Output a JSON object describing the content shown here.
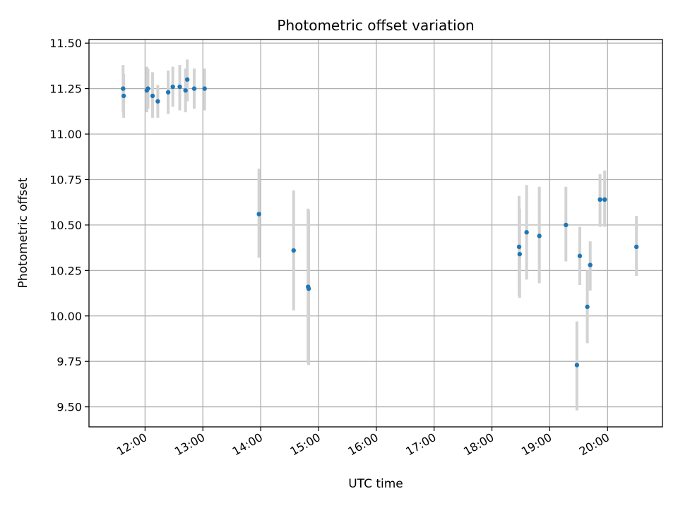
{
  "chart_data": {
    "type": "scatter",
    "title": "Photometric offset variation",
    "xlabel": "UTC time",
    "ylabel": "Photometric offset",
    "xlim_hours": [
      11.03,
      20.95
    ],
    "ylim": [
      9.39,
      11.52
    ],
    "x_ticks": [
      {
        "hour": 12,
        "label": "12:00"
      },
      {
        "hour": 13,
        "label": "13:00"
      },
      {
        "hour": 14,
        "label": "14:00"
      },
      {
        "hour": 15,
        "label": "15:00"
      },
      {
        "hour": 16,
        "label": "16:00"
      },
      {
        "hour": 17,
        "label": "17:00"
      },
      {
        "hour": 18,
        "label": "18:00"
      },
      {
        "hour": 19,
        "label": "19:00"
      },
      {
        "hour": 20,
        "label": "20:00"
      }
    ],
    "y_ticks": [
      {
        "value": 9.5,
        "label": "9.50"
      },
      {
        "value": 9.75,
        "label": "9.75"
      },
      {
        "value": 10.0,
        "label": "10.00"
      },
      {
        "value": 10.25,
        "label": "10.25"
      },
      {
        "value": 10.5,
        "label": "10.50"
      },
      {
        "value": 10.75,
        "label": "10.75"
      },
      {
        "value": 11.0,
        "label": "11.00"
      },
      {
        "value": 11.25,
        "label": "11.25"
      },
      {
        "value": 11.5,
        "label": "11.50"
      }
    ],
    "grid": true,
    "marker_color": "#1f77b4",
    "errorbar_color": "#d3d3d3",
    "points": [
      {
        "x": 11.62,
        "y": 11.25,
        "lo": 11.12,
        "hi": 11.38
      },
      {
        "x": 11.63,
        "y": 11.21,
        "lo": 11.09,
        "hi": 11.33
      },
      {
        "x": 12.03,
        "y": 11.24,
        "lo": 11.12,
        "hi": 11.37
      },
      {
        "x": 12.05,
        "y": 11.25,
        "lo": 11.14,
        "hi": 11.36
      },
      {
        "x": 12.13,
        "y": 11.21,
        "lo": 11.09,
        "hi": 11.34
      },
      {
        "x": 12.22,
        "y": 11.18,
        "lo": 11.09,
        "hi": 11.27
      },
      {
        "x": 12.4,
        "y": 11.23,
        "lo": 11.11,
        "hi": 11.35
      },
      {
        "x": 12.48,
        "y": 11.26,
        "lo": 11.15,
        "hi": 11.37
      },
      {
        "x": 12.6,
        "y": 11.26,
        "lo": 11.13,
        "hi": 11.38
      },
      {
        "x": 12.7,
        "y": 11.24,
        "lo": 11.12,
        "hi": 11.36
      },
      {
        "x": 12.73,
        "y": 11.3,
        "lo": 11.18,
        "hi": 11.41
      },
      {
        "x": 12.85,
        "y": 11.25,
        "lo": 11.14,
        "hi": 11.36
      },
      {
        "x": 13.03,
        "y": 11.25,
        "lo": 11.13,
        "hi": 11.36
      },
      {
        "x": 13.97,
        "y": 10.56,
        "lo": 10.32,
        "hi": 10.81
      },
      {
        "x": 14.57,
        "y": 10.36,
        "lo": 10.03,
        "hi": 10.69
      },
      {
        "x": 14.82,
        "y": 10.16,
        "lo": 9.74,
        "hi": 10.59
      },
      {
        "x": 14.83,
        "y": 10.15,
        "lo": 9.73,
        "hi": 10.58
      },
      {
        "x": 18.47,
        "y": 10.38,
        "lo": 10.11,
        "hi": 10.66
      },
      {
        "x": 18.48,
        "y": 10.34,
        "lo": 10.1,
        "hi": 10.59
      },
      {
        "x": 18.6,
        "y": 10.46,
        "lo": 10.2,
        "hi": 10.72
      },
      {
        "x": 18.82,
        "y": 10.44,
        "lo": 10.18,
        "hi": 10.71
      },
      {
        "x": 19.28,
        "y": 10.5,
        "lo": 10.3,
        "hi": 10.71
      },
      {
        "x": 19.47,
        "y": 9.73,
        "lo": 9.48,
        "hi": 9.97
      },
      {
        "x": 19.52,
        "y": 10.33,
        "lo": 10.17,
        "hi": 10.49
      },
      {
        "x": 19.65,
        "y": 10.05,
        "lo": 9.85,
        "hi": 10.25
      },
      {
        "x": 19.7,
        "y": 10.28,
        "lo": 10.14,
        "hi": 10.41
      },
      {
        "x": 19.87,
        "y": 10.64,
        "lo": 10.49,
        "hi": 10.78
      },
      {
        "x": 19.95,
        "y": 10.64,
        "lo": 10.49,
        "hi": 10.8
      },
      {
        "x": 20.5,
        "y": 10.38,
        "lo": 10.22,
        "hi": 10.55
      }
    ]
  }
}
